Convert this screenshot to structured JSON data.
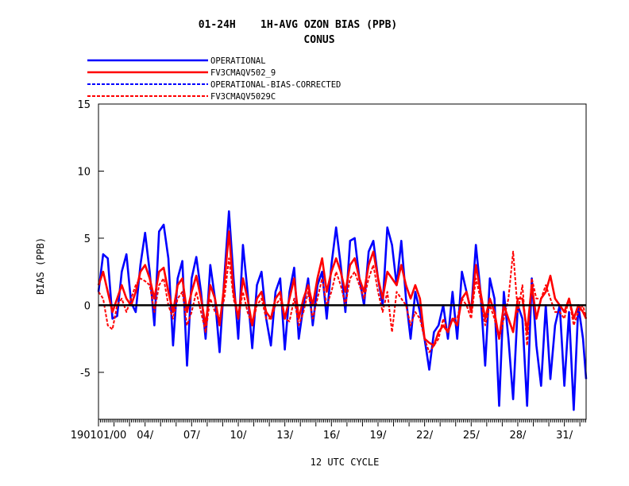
{
  "chart_data": {
    "type": "line",
    "title": "01-24H    1H-AVG OZON BIAS (PPB)",
    "subtitle": "CONUS",
    "xlabel": "12 UTC CYCLE",
    "ylabel": "BIAS (PPB)",
    "ylim": [
      -8.5,
      15
    ],
    "xlim": [
      1,
      32.4
    ],
    "yticks": [
      -5,
      0,
      5,
      10,
      15
    ],
    "ytick_labels": [
      "-5",
      "0",
      "5",
      "10",
      "15"
    ],
    "xticks": [
      1,
      4,
      7,
      10,
      13,
      16,
      19,
      22,
      25,
      28,
      31
    ],
    "xtick_labels": [
      "190101/00",
      "04/",
      "07/",
      "10/",
      "13/",
      "16/",
      "19/",
      "22/",
      "25/",
      "28/",
      "31/"
    ],
    "zero_line": true,
    "grid": false,
    "legend_position": "top-left",
    "series": [
      {
        "name": "OPERATIONAL",
        "color": "#0000ff",
        "dash": "solid",
        "x": [
          1.0,
          1.3,
          1.6,
          1.9,
          2.2,
          2.5,
          2.8,
          3.1,
          3.4,
          3.7,
          4.0,
          4.3,
          4.6,
          4.9,
          5.2,
          5.5,
          5.8,
          6.1,
          6.4,
          6.7,
          7.0,
          7.3,
          7.6,
          7.9,
          8.2,
          8.5,
          8.8,
          9.1,
          9.4,
          9.7,
          10.0,
          10.3,
          10.6,
          10.9,
          11.2,
          11.5,
          11.8,
          12.1,
          12.4,
          12.7,
          13.0,
          13.3,
          13.6,
          13.9,
          14.2,
          14.5,
          14.8,
          15.1,
          15.4,
          15.7,
          16.0,
          16.3,
          16.6,
          16.9,
          17.2,
          17.5,
          17.8,
          18.1,
          18.4,
          18.7,
          19.0,
          19.3,
          19.6,
          19.9,
          20.2,
          20.5,
          20.8,
          21.1,
          21.4,
          21.7,
          22.0,
          22.3,
          22.6,
          22.9,
          23.2,
          23.5,
          23.8,
          24.1,
          24.4,
          24.7,
          25.0,
          25.3,
          25.6,
          25.9,
          26.2,
          26.5,
          26.8,
          27.1,
          27.4,
          27.7,
          28.0,
          28.3,
          28.6,
          28.9,
          29.2,
          29.5,
          29.8,
          30.1,
          30.4,
          30.7,
          31.0,
          31.3,
          31.6,
          31.9,
          32.2,
          32.4
        ],
        "y": [
          1.0,
          3.8,
          3.5,
          -1.0,
          -0.8,
          2.5,
          3.8,
          0.2,
          -0.5,
          3.0,
          5.4,
          2.5,
          -1.5,
          5.5,
          6.0,
          3.5,
          -3.0,
          2.0,
          3.3,
          -4.5,
          2.0,
          3.6,
          1.0,
          -2.5,
          3.0,
          0.5,
          -3.5,
          2.0,
          7.0,
          2.0,
          -2.5,
          4.5,
          1.0,
          -3.2,
          1.5,
          2.5,
          -1.0,
          -3.0,
          1.0,
          2.0,
          -3.3,
          1.0,
          2.8,
          -2.5,
          0.0,
          2.0,
          -1.5,
          1.5,
          2.5,
          -1.0,
          3.0,
          5.8,
          3.0,
          -0.5,
          4.8,
          5.0,
          2.0,
          0.0,
          4.0,
          4.8,
          2.0,
          0.0,
          5.8,
          4.5,
          1.5,
          4.8,
          0.5,
          -2.5,
          1.0,
          -0.5,
          -2.5,
          -4.8,
          -2.0,
          -1.5,
          0.0,
          -2.5,
          1.0,
          -2.5,
          2.5,
          1.0,
          -0.5,
          4.5,
          1.0,
          -4.5,
          2.0,
          0.5,
          -7.5,
          1.0,
          -2.5,
          -7.0,
          0.0,
          -1.0,
          -7.5,
          2.0,
          -3.0,
          -6.0,
          0.0,
          -5.5,
          -1.5,
          0.0,
          -6.0,
          -0.5,
          -7.8,
          0.0,
          -2.5,
          -5.5
        ]
      },
      {
        "name": "FV3CMAQV502_9",
        "color": "#ff0000",
        "dash": "solid",
        "x": [
          1.0,
          1.3,
          1.6,
          1.9,
          2.2,
          2.5,
          2.8,
          3.1,
          3.4,
          3.7,
          4.0,
          4.3,
          4.6,
          4.9,
          5.2,
          5.5,
          5.8,
          6.1,
          6.4,
          6.7,
          7.0,
          7.3,
          7.6,
          7.9,
          8.2,
          8.5,
          8.8,
          9.1,
          9.4,
          9.7,
          10.0,
          10.3,
          10.6,
          10.9,
          11.2,
          11.5,
          11.8,
          12.1,
          12.4,
          12.7,
          13.0,
          13.3,
          13.6,
          13.9,
          14.2,
          14.5,
          14.8,
          15.1,
          15.4,
          15.7,
          16.0,
          16.3,
          16.6,
          16.9,
          17.2,
          17.5,
          17.8,
          18.1,
          18.4,
          18.7,
          19.0,
          19.3,
          19.6,
          19.9,
          20.2,
          20.5,
          20.8,
          21.1,
          21.4,
          21.7,
          22.0,
          22.3,
          22.6,
          22.9,
          23.2,
          23.5,
          23.8,
          24.1,
          24.4,
          24.7,
          25.0,
          25.3,
          25.6,
          25.9,
          26.2,
          26.5,
          26.8,
          27.1,
          27.4,
          27.7,
          28.0,
          28.3,
          28.6,
          28.9,
          29.2,
          29.5,
          29.8,
          30.1,
          30.4,
          30.7,
          31.0,
          31.3,
          31.6,
          31.9,
          32.2,
          32.4
        ],
        "y": [
          1.5,
          2.5,
          1.0,
          -0.5,
          0.5,
          1.5,
          0.5,
          0.0,
          1.0,
          2.5,
          3.0,
          2.0,
          0.5,
          2.5,
          2.8,
          1.0,
          -0.5,
          1.5,
          2.0,
          -0.5,
          1.0,
          2.2,
          0.5,
          -1.5,
          1.5,
          0.5,
          -1.5,
          1.5,
          5.5,
          1.0,
          -1.0,
          2.0,
          0.5,
          -1.5,
          0.5,
          1.0,
          -0.5,
          -1.0,
          0.5,
          1.0,
          -1.0,
          0.5,
          2.0,
          -1.0,
          0.5,
          1.5,
          0.0,
          2.0,
          3.5,
          1.0,
          2.5,
          3.5,
          2.5,
          1.0,
          3.0,
          3.5,
          2.0,
          1.0,
          3.0,
          4.0,
          2.0,
          0.5,
          2.5,
          2.0,
          1.5,
          3.0,
          1.5,
          0.5,
          1.5,
          0.5,
          -2.5,
          -2.8,
          -3.0,
          -2.0,
          -1.5,
          -2.0,
          -1.0,
          -1.5,
          0.5,
          1.0,
          -0.5,
          3.0,
          1.0,
          -1.0,
          0.5,
          -0.5,
          -2.5,
          0.0,
          -1.0,
          -2.0,
          0.5,
          0.5,
          -2.0,
          1.5,
          -1.0,
          0.5,
          1.0,
          2.2,
          0.5,
          0.0,
          -0.5,
          0.5,
          -1.0,
          0.0,
          -0.5,
          -1.0
        ]
      },
      {
        "name": "OPERATIONAL-BIAS-CORRECTED",
        "color": "#0000ff",
        "dash": "dashed",
        "x": [],
        "y": []
      },
      {
        "name": "FV3CMAQV5029C",
        "color": "#ff0000",
        "dash": "dashed",
        "x": [
          1.0,
          1.3,
          1.6,
          1.9,
          2.2,
          2.5,
          2.8,
          3.1,
          3.4,
          3.7,
          4.0,
          4.3,
          4.6,
          4.9,
          5.2,
          5.5,
          5.8,
          6.1,
          6.4,
          6.7,
          7.0,
          7.3,
          7.6,
          7.9,
          8.2,
          8.5,
          8.8,
          9.1,
          9.4,
          9.7,
          10.0,
          10.3,
          10.6,
          10.9,
          11.2,
          11.5,
          11.8,
          12.1,
          12.4,
          12.7,
          13.0,
          13.3,
          13.6,
          13.9,
          14.2,
          14.5,
          14.8,
          15.1,
          15.4,
          15.7,
          16.0,
          16.3,
          16.6,
          16.9,
          17.2,
          17.5,
          17.8,
          18.1,
          18.4,
          18.7,
          19.0,
          19.3,
          19.6,
          19.9,
          20.2,
          20.5,
          20.8,
          21.1,
          21.4,
          21.7,
          22.0,
          22.3,
          22.6,
          22.9,
          23.2,
          23.5,
          23.8,
          24.1,
          24.4,
          24.7,
          25.0,
          25.3,
          25.6,
          25.9,
          26.2,
          26.5,
          26.8,
          27.1,
          27.4,
          27.7,
          28.0,
          28.3,
          28.6,
          28.9,
          29.2,
          29.5,
          29.8,
          30.1,
          30.4,
          30.7,
          31.0,
          31.3,
          31.6,
          31.9,
          32.2,
          32.4
        ],
        "y": [
          1.0,
          0.5,
          -1.5,
          -1.8,
          0.0,
          0.5,
          -0.5,
          0.5,
          1.5,
          2.0,
          1.8,
          1.5,
          -0.5,
          1.5,
          2.0,
          0.0,
          -1.0,
          0.5,
          1.0,
          -1.5,
          -0.5,
          1.0,
          -0.5,
          -2.0,
          0.5,
          -0.5,
          -1.0,
          0.5,
          3.5,
          0.5,
          -1.0,
          1.0,
          -0.5,
          -1.5,
          0.0,
          0.5,
          -1.0,
          -1.0,
          0.0,
          0.5,
          -1.0,
          -1.2,
          0.5,
          -1.5,
          -0.5,
          1.0,
          -1.0,
          0.5,
          2.0,
          0.0,
          1.0,
          2.5,
          1.5,
          0.0,
          2.0,
          2.5,
          1.5,
          0.5,
          2.0,
          3.0,
          1.0,
          -0.5,
          1.0,
          -2.0,
          1.0,
          0.5,
          0.0,
          -1.5,
          -0.5,
          -1.0,
          -2.5,
          -3.5,
          -3.0,
          -2.5,
          -1.0,
          -2.0,
          -1.0,
          -1.0,
          0.5,
          0.0,
          -1.0,
          2.0,
          0.5,
          -1.5,
          0.0,
          -1.0,
          -2.5,
          -1.0,
          0.5,
          4.0,
          -0.5,
          1.5,
          -3.0,
          2.0,
          0.5,
          0.5,
          1.5,
          0.5,
          -0.5,
          -0.5,
          -1.0,
          0.5,
          -1.5,
          -0.5,
          0.0,
          -1.0
        ]
      }
    ]
  }
}
